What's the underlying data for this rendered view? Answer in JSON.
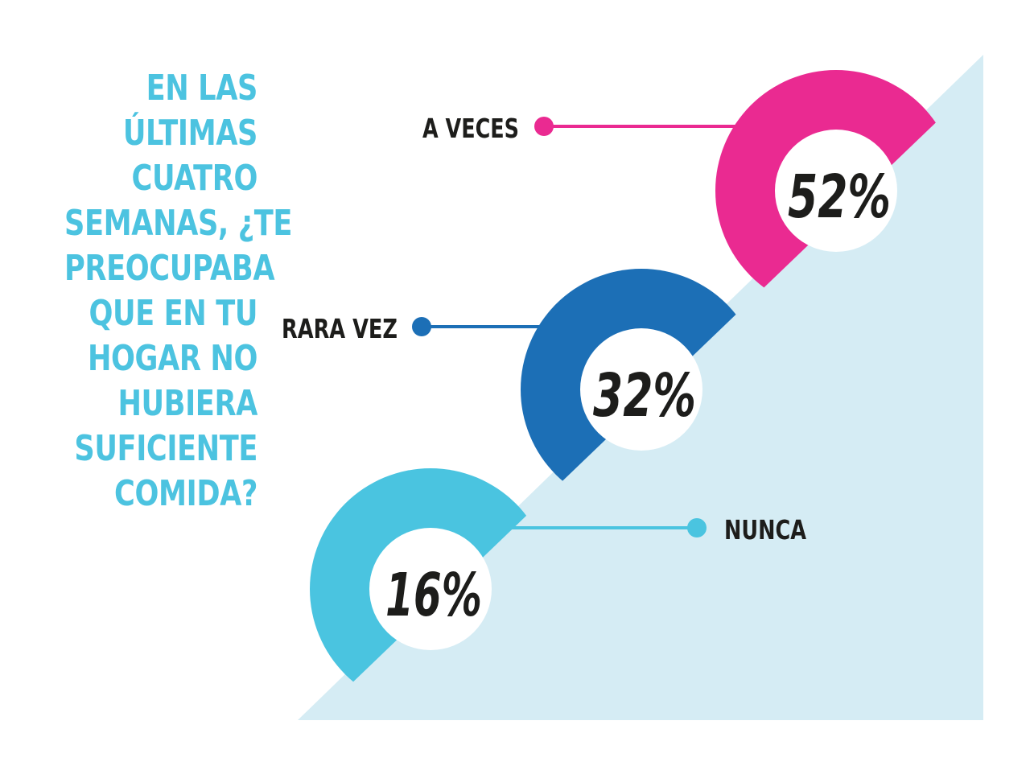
{
  "question_lines": [
    "EN LAS",
    "ÚLTIMAS",
    "CUATRO",
    "SEMANAS, ¿TE",
    "PREOCUPABA",
    "QUE EN TU",
    "HOGAR NO",
    "HUBIERA",
    "SUFICIENTE",
    "COMIDA?"
  ],
  "colors": {
    "question_text": "#4cc3e0",
    "background_triangle": "#d5ecf4",
    "label_text": "#1d1d1b"
  },
  "chart_data": {
    "type": "pie",
    "title": "EN LAS ÚLTIMAS CUATRO SEMANAS, ¿TE PREOCUPABA QUE EN TU HOGAR NO HUBIERA SUFICIENTE COMIDA?",
    "unit": "%",
    "categories": [
      "A VECES",
      "RARA VEZ",
      "NUNCA"
    ],
    "values": [
      52,
      32,
      16
    ],
    "value_labels": [
      "52%",
      "32%",
      "16%"
    ],
    "series_colors": [
      "#ea2a91",
      "#1c6fb6",
      "#4ac4e0"
    ]
  }
}
